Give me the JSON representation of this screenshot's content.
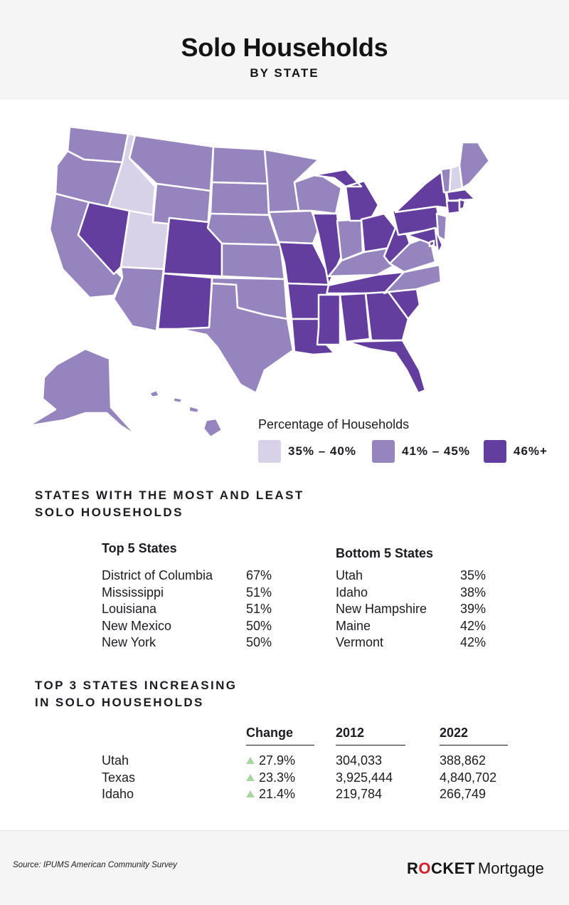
{
  "header": {
    "title": "Solo Households",
    "subtitle": "BY STATE"
  },
  "colors": {
    "low": "#d8d2e8",
    "mid": "#9584bd",
    "high": "#633e9f",
    "brand_red": "#d4202b",
    "increase_arrow": "#a9d6a0"
  },
  "map": {
    "legend_title": "Percentage of Households",
    "legend": [
      {
        "label": "35% – 40%",
        "color": "#d8d2e8"
      },
      {
        "label": "41% – 45%",
        "color": "#9584bd"
      },
      {
        "label": "46%+",
        "color": "#633e9f"
      }
    ]
  },
  "most_least": {
    "title_line1": "STATES WITH THE MOST AND LEAST",
    "title_line2": "SOLO HOUSEHOLDS",
    "top_title": "Top 5 States",
    "bottom_title": "Bottom 5 States",
    "top": [
      {
        "state": "District of Columbia",
        "pct": "67%"
      },
      {
        "state": "Mississippi",
        "pct": "51%"
      },
      {
        "state": "Louisiana",
        "pct": "51%"
      },
      {
        "state": "New Mexico",
        "pct": "50%"
      },
      {
        "state": "New York",
        "pct": "50%"
      }
    ],
    "bottom": [
      {
        "state": "Utah",
        "pct": "35%"
      },
      {
        "state": "Idaho",
        "pct": "38%"
      },
      {
        "state": "New Hampshire",
        "pct": "39%"
      },
      {
        "state": "Maine",
        "pct": "42%"
      },
      {
        "state": "Vermont",
        "pct": "42%"
      }
    ]
  },
  "increasing": {
    "title_line1": "TOP 3 STATES INCREASING",
    "title_line2": "IN SOLO HOUSEHOLDS",
    "headers": {
      "change": "Change",
      "y2012": "2012",
      "y2022": "2022"
    },
    "rows": [
      {
        "state": "Utah",
        "change": "27.9%",
        "y2012": "304,033",
        "y2022": "388,862"
      },
      {
        "state": "Texas",
        "change": "23.3%",
        "y2012": "3,925,444",
        "y2022": "4,840,702"
      },
      {
        "state": "Idaho",
        "change": "21.4%",
        "y2012": "219,784",
        "y2022": "266,749"
      }
    ]
  },
  "footer": {
    "source": "Source: IPUMS American Community Survey",
    "brand_part1_pre": "R",
    "brand_part1_o": "O",
    "brand_part1_post": "CKET",
    "brand_part2": "Mortgage"
  }
}
